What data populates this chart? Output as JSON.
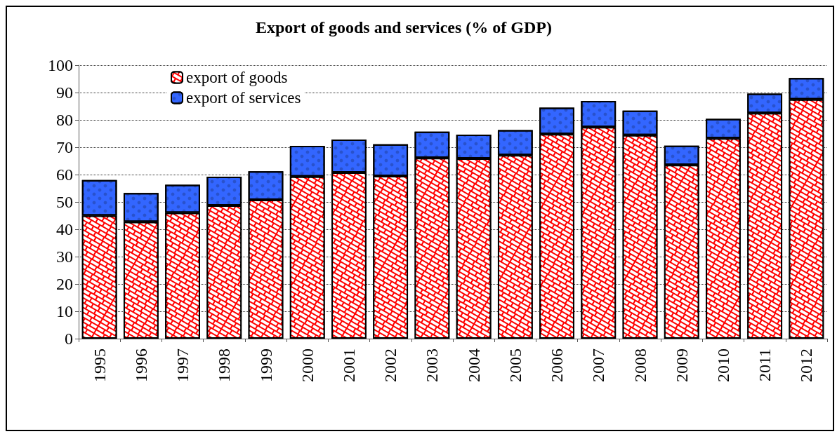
{
  "chart_data": {
    "type": "bar",
    "title": "Export of goods and services (% of GDP)",
    "categories": [
      "1995",
      "1996",
      "1997",
      "1998",
      "1999",
      "2000",
      "2001",
      "2002",
      "2003",
      "2004",
      "2005",
      "2006",
      "2007",
      "2008",
      "2009",
      "2010",
      "2011",
      "2012"
    ],
    "series": [
      {
        "name": "export of goods",
        "color": "#ff0000",
        "values": [
          45,
          42.7,
          46,
          48.7,
          50.8,
          59.3,
          60.8,
          59.5,
          66.1,
          65.9,
          67.1,
          74.8,
          77.4,
          74.4,
          63.5,
          73.3,
          82.5,
          87.5
        ]
      },
      {
        "name": "export of services",
        "color": "#3366ff",
        "values": [
          13,
          10.6,
          10.3,
          10.5,
          10.4,
          11.2,
          12,
          11.6,
          9.6,
          8.7,
          9.2,
          9.7,
          9.5,
          9,
          7.1,
          7.1,
          7.1,
          7.8
        ]
      }
    ],
    "stacked": true,
    "ylim": [
      0,
      100
    ],
    "yticks": [
      0,
      10,
      20,
      30,
      40,
      50,
      60,
      70,
      80,
      90,
      100
    ],
    "grid": "y",
    "legend": "top left"
  }
}
